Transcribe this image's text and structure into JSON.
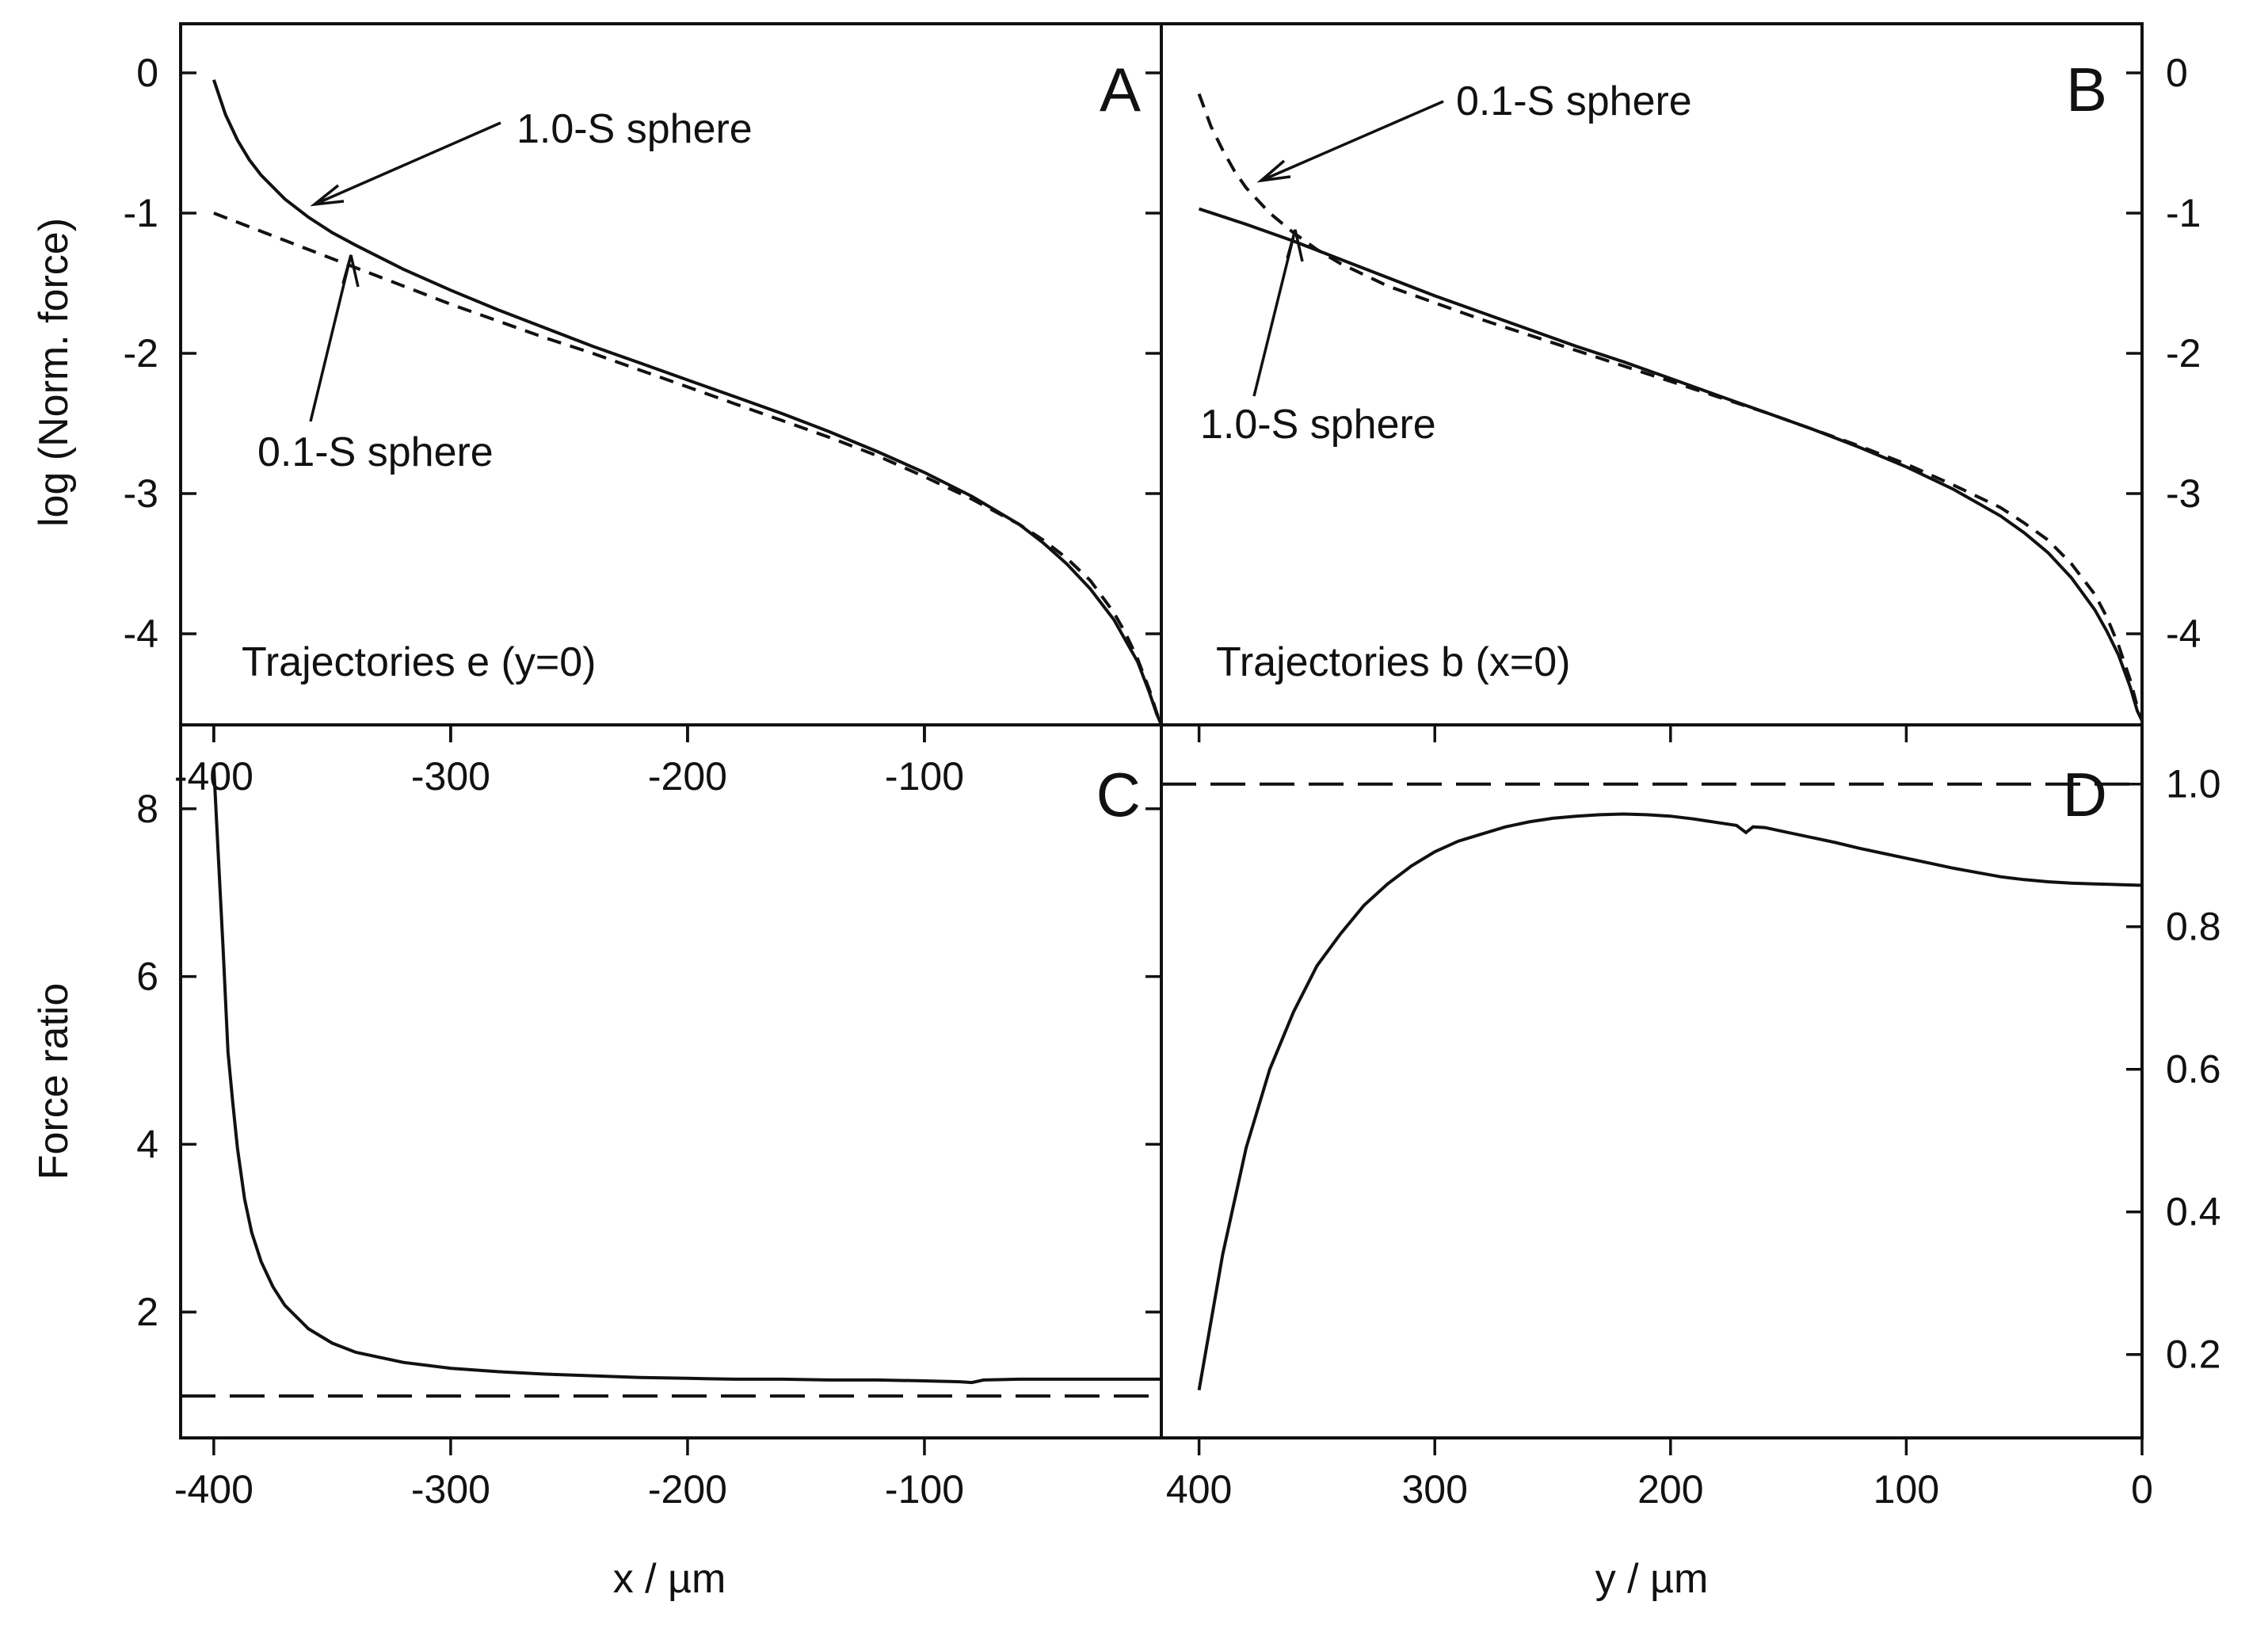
{
  "chart_data": [
    {
      "panel": "A",
      "type": "line",
      "note": "Trajectories e (y=0)",
      "xlabel": "x / µm",
      "ylabel": "log (Norm. force)",
      "xlim": [
        -414,
        0
      ],
      "ylim": [
        -4.65,
        0.35
      ],
      "xticks": [
        -400,
        -300,
        -200,
        -100
      ],
      "xtick_labels": [
        "-400",
        "-300",
        "-200",
        "-100"
      ],
      "yticks": [
        0,
        -1,
        -2,
        -3,
        -4
      ],
      "ytick_labels": [
        "0",
        "-1",
        "-2",
        "-3",
        "-4"
      ],
      "legend": "none",
      "series": [
        {
          "name": "1.0-S sphere",
          "style": "solid",
          "x": [
            -400,
            -395,
            -390,
            -385,
            -380,
            -370,
            -360,
            -350,
            -340,
            -320,
            -300,
            -280,
            -260,
            -240,
            -220,
            -200,
            -180,
            -160,
            -140,
            -120,
            -100,
            -80,
            -60,
            -50,
            -40,
            -30,
            -20,
            -15,
            -10,
            -5,
            -2,
            0
          ],
          "y": [
            -0.05,
            -0.3,
            -0.48,
            -0.62,
            -0.73,
            -0.9,
            -1.03,
            -1.14,
            -1.23,
            -1.4,
            -1.55,
            -1.69,
            -1.82,
            -1.95,
            -2.07,
            -2.19,
            -2.31,
            -2.43,
            -2.56,
            -2.7,
            -2.85,
            -3.02,
            -3.22,
            -3.35,
            -3.5,
            -3.68,
            -3.9,
            -4.05,
            -4.2,
            -4.42,
            -4.57,
            -4.65
          ]
        },
        {
          "name": "0.1-S sphere",
          "style": "dashed",
          "x": [
            -400,
            -380,
            -360,
            -340,
            -320,
            -300,
            -280,
            -260,
            -240,
            -220,
            -200,
            -180,
            -160,
            -140,
            -120,
            -100,
            -80,
            -60,
            -50,
            -40,
            -30,
            -20,
            -15,
            -10,
            -5,
            -2,
            0
          ],
          "y": [
            -1.0,
            -1.13,
            -1.26,
            -1.39,
            -1.52,
            -1.65,
            -1.77,
            -1.89,
            -2.0,
            -2.12,
            -2.24,
            -2.36,
            -2.48,
            -2.6,
            -2.73,
            -2.88,
            -3.04,
            -3.22,
            -3.33,
            -3.46,
            -3.62,
            -3.85,
            -4.0,
            -4.18,
            -4.4,
            -4.56,
            -4.65
          ]
        }
      ],
      "annotations": [
        {
          "text": "1.0-S sphere",
          "points_to": [
            -357,
            -1.06
          ]
        },
        {
          "text": "0.1-S sphere",
          "points_to": [
            -343,
            -1.43
          ]
        }
      ]
    },
    {
      "panel": "B",
      "type": "line",
      "note": "Trajectories b (x=0)",
      "xlabel": "",
      "ylabel": "",
      "xlim": [
        416,
        0
      ],
      "ylim": [
        -4.65,
        0.35
      ],
      "xticks": [],
      "xtick_labels": [],
      "yticks": [
        0,
        -1,
        -2,
        -3,
        -4
      ],
      "ytick_labels": [
        "0",
        "-1",
        "-2",
        "-3",
        "-4"
      ],
      "legend": "none",
      "series": [
        {
          "name": "1.0-S sphere",
          "style": "solid",
          "x": [
            400,
            380,
            360,
            340,
            320,
            300,
            280,
            260,
            240,
            220,
            200,
            180,
            160,
            140,
            120,
            100,
            80,
            60,
            50,
            40,
            30,
            20,
            15,
            10,
            5,
            2,
            0
          ],
          "y": [
            -0.97,
            -1.08,
            -1.2,
            -1.33,
            -1.46,
            -1.59,
            -1.71,
            -1.83,
            -1.95,
            -2.06,
            -2.18,
            -2.3,
            -2.42,
            -2.54,
            -2.67,
            -2.81,
            -2.97,
            -3.16,
            -3.28,
            -3.42,
            -3.6,
            -3.83,
            -3.98,
            -4.15,
            -4.38,
            -4.55,
            -4.62
          ]
        },
        {
          "name": "0.1-S sphere",
          "style": "dashed",
          "x": [
            400,
            395,
            390,
            385,
            380,
            370,
            360,
            350,
            340,
            320,
            300,
            280,
            260,
            240,
            220,
            200,
            180,
            160,
            140,
            120,
            100,
            80,
            60,
            50,
            40,
            30,
            20,
            15,
            10,
            5,
            2,
            0
          ],
          "y": [
            -0.15,
            -0.38,
            -0.55,
            -0.7,
            -0.82,
            -1.0,
            -1.14,
            -1.26,
            -1.36,
            -1.52,
            -1.64,
            -1.76,
            -1.87,
            -1.98,
            -2.09,
            -2.2,
            -2.31,
            -2.42,
            -2.54,
            -2.66,
            -2.79,
            -2.94,
            -3.1,
            -3.21,
            -3.33,
            -3.5,
            -3.72,
            -3.88,
            -4.08,
            -4.33,
            -4.52,
            -4.6
          ]
        }
      ],
      "annotations": [
        {
          "text": "0.1-S sphere",
          "points_to": [
            374,
            -0.9
          ]
        },
        {
          "text": "1.0-S sphere",
          "points_to": [
            357,
            -1.25
          ]
        }
      ]
    },
    {
      "panel": "C",
      "type": "line",
      "xlabel": "x / µm",
      "ylabel": "Force ratio",
      "xlim": [
        -414,
        0
      ],
      "ylim": [
        0.5,
        9.0
      ],
      "xticks": [
        -400,
        -300,
        -200,
        -100
      ],
      "xtick_labels": [
        "-400",
        "-300",
        "-200",
        "-100"
      ],
      "yticks": [
        2,
        4,
        6,
        8
      ],
      "ytick_labels": [
        "2",
        "4",
        "6",
        "8"
      ],
      "legend": "none",
      "series": [
        {
          "style": "solid",
          "x": [
            -400,
            -398,
            -396,
            -394,
            -392,
            -390,
            -387,
            -384,
            -380,
            -375,
            -370,
            -360,
            -350,
            -340,
            -320,
            -300,
            -280,
            -260,
            -240,
            -220,
            -200,
            -180,
            -160,
            -140,
            -120,
            -100,
            -85,
            -80,
            -75,
            -60,
            -40,
            -20,
            0
          ],
          "y": [
            8.5,
            7.4,
            6.3,
            5.1,
            4.5,
            3.95,
            3.35,
            2.95,
            2.6,
            2.3,
            2.08,
            1.8,
            1.63,
            1.52,
            1.4,
            1.33,
            1.29,
            1.26,
            1.24,
            1.22,
            1.21,
            1.2,
            1.2,
            1.19,
            1.19,
            1.18,
            1.17,
            1.16,
            1.19,
            1.2,
            1.2,
            1.2,
            1.2
          ]
        },
        {
          "style": "dashed",
          "x": [
            -414,
            0
          ],
          "y": [
            1.0,
            1.0
          ]
        }
      ]
    },
    {
      "panel": "D",
      "type": "line",
      "xlabel": "y / µm",
      "ylabel": "",
      "xlim": [
        416,
        0
      ],
      "ylim": [
        0.083,
        1.083
      ],
      "xticks": [
        400,
        300,
        200,
        100,
        0
      ],
      "xtick_labels": [
        "400",
        "300",
        "200",
        "100",
        "0"
      ],
      "yticks": [
        1.0,
        0.8,
        0.6,
        0.4,
        0.2
      ],
      "ytick_labels": [
        "1.0",
        "0.8",
        "0.6",
        "0.4",
        "0.2"
      ],
      "legend": "none",
      "series": [
        {
          "style": "solid",
          "x": [
            400,
            390,
            380,
            370,
            360,
            350,
            340,
            330,
            320,
            310,
            300,
            290,
            280,
            270,
            260,
            250,
            240,
            230,
            220,
            210,
            200,
            190,
            180,
            172,
            168,
            165,
            160,
            150,
            140,
            130,
            120,
            110,
            100,
            90,
            80,
            70,
            60,
            50,
            40,
            30,
            20,
            10,
            0
          ],
          "y": [
            0.15,
            0.34,
            0.49,
            0.6,
            0.68,
            0.745,
            0.79,
            0.83,
            0.86,
            0.885,
            0.905,
            0.92,
            0.93,
            0.94,
            0.947,
            0.952,
            0.955,
            0.957,
            0.958,
            0.957,
            0.955,
            0.951,
            0.946,
            0.942,
            0.932,
            0.94,
            0.939,
            0.932,
            0.925,
            0.918,
            0.91,
            0.903,
            0.896,
            0.889,
            0.882,
            0.876,
            0.87,
            0.866,
            0.863,
            0.861,
            0.86,
            0.859,
            0.858
          ]
        },
        {
          "style": "dashed",
          "x": [
            416,
            0
          ],
          "y": [
            1.0,
            1.0
          ]
        }
      ]
    }
  ]
}
